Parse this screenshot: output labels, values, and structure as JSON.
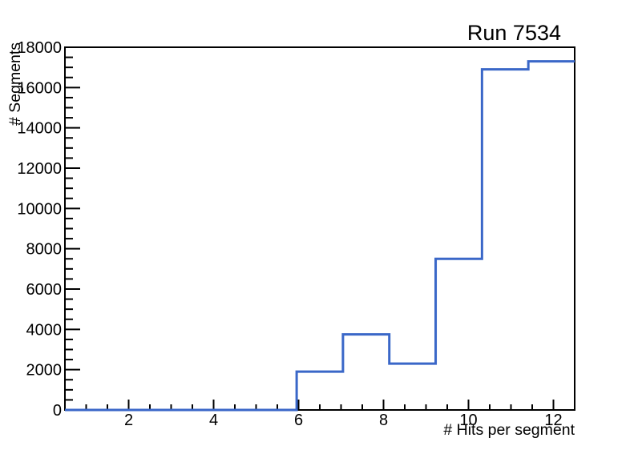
{
  "window": {
    "background": "#ffffff"
  },
  "chart_data": {
    "type": "bar",
    "style": "step-histogram-outline",
    "title": "Run 7534",
    "xlabel": "# Hits per segment",
    "ylabel": "# Segments",
    "xlim": [
      0.5,
      12.5
    ],
    "ylim": [
      0,
      18000
    ],
    "bin_edges": [
      0.5,
      1.591,
      2.682,
      3.773,
      4.864,
      5.955,
      7.045,
      8.136,
      9.227,
      10.318,
      11.409,
      12.5
    ],
    "values": [
      0,
      0,
      0,
      0,
      0,
      1900,
      3750,
      2300,
      7500,
      16900,
      17300
    ],
    "x_major_ticks": [
      2,
      4,
      6,
      8,
      10,
      12
    ],
    "x_tick_labels": [
      "2",
      "4",
      "6",
      "8",
      "10",
      "12"
    ],
    "x_minor_step": 0.5,
    "y_major_ticks": [
      0,
      2000,
      4000,
      6000,
      8000,
      10000,
      12000,
      14000,
      16000,
      18000
    ],
    "y_tick_labels": [
      "0",
      "2000",
      "4000",
      "6000",
      "8000",
      "10000",
      "12000",
      "14000",
      "16000",
      "18000"
    ],
    "y_minor_step": 500,
    "line_color": "#3a67c8",
    "axis_color": "#000000",
    "grid": false,
    "legend": false
  }
}
